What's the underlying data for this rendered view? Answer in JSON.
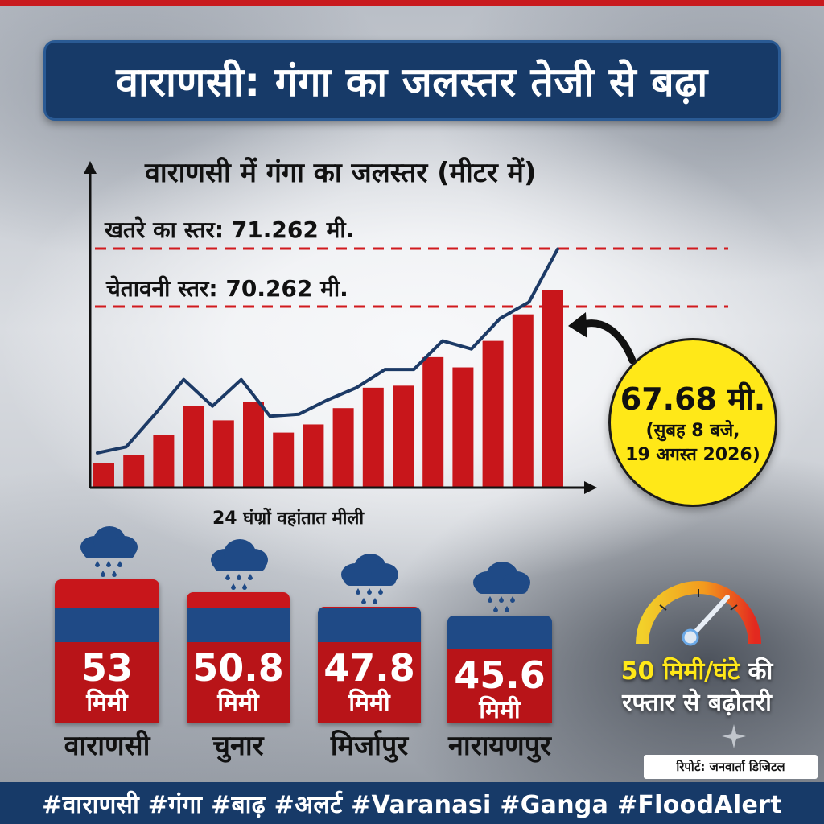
{
  "title": "वाराणसी: गंगा का जलस्तर तेजी से बढ़ा",
  "chart_data": {
    "type": "bar",
    "title": "वाराणसी में गंगा का जलस्तर (मीटर में)",
    "thresholds": [
      {
        "label": "खतरे का स्तर: 71.262 मी.",
        "value": 71.262,
        "color": "#d11a1e"
      },
      {
        "label": "चेतावनी स्तर: 70.262 मी.",
        "value": 70.262,
        "color": "#d11a1e"
      }
    ],
    "bar_values": [
      1.2,
      1.6,
      2.6,
      4.0,
      3.3,
      4.2,
      2.7,
      3.1,
      3.9,
      4.9,
      5.0,
      6.4,
      5.9,
      7.2,
      8.5,
      9.7
    ],
    "line_values": [
      1.7,
      2.0,
      3.6,
      5.3,
      4.0,
      5.3,
      3.5,
      3.6,
      4.3,
      4.9,
      5.8,
      5.8,
      7.2,
      6.8,
      8.3,
      9.1,
      11.7
    ],
    "ylim": [
      0,
      15
    ],
    "bar_color": "#c8161b",
    "line_color": "#1c3a66",
    "callout": {
      "value": "67.68 मी.",
      "line1": "(सुबह 8 बजे,",
      "line2": "19 अगस्त 2026)"
    }
  },
  "rainfall": {
    "caption": "24 घंण्रों वहांतात मीली",
    "unit": "मिमी",
    "stations": [
      {
        "name": "वाराणसी",
        "value": "53"
      },
      {
        "name": "चुनार",
        "value": "50.8"
      },
      {
        "name": "मिर्जापुर",
        "value": "47.8"
      },
      {
        "name": "नारायणपुर",
        "value": "45.6"
      }
    ]
  },
  "rate": {
    "highlight": "50 मिमी/घंटे",
    "suffix": " की",
    "line2": "रफ्तार से बढ़ोतरी"
  },
  "credit": "रिपोर्ट: जनवार्ता डिजिटल",
  "hashtags": "#वाराणसी #गंगा #बाढ़ #अलर्ट #Varanasi #Ganga #FloodAlert",
  "colors": {
    "navy": "#173a68",
    "red": "#c8161b",
    "yellow": "#ffe818"
  }
}
